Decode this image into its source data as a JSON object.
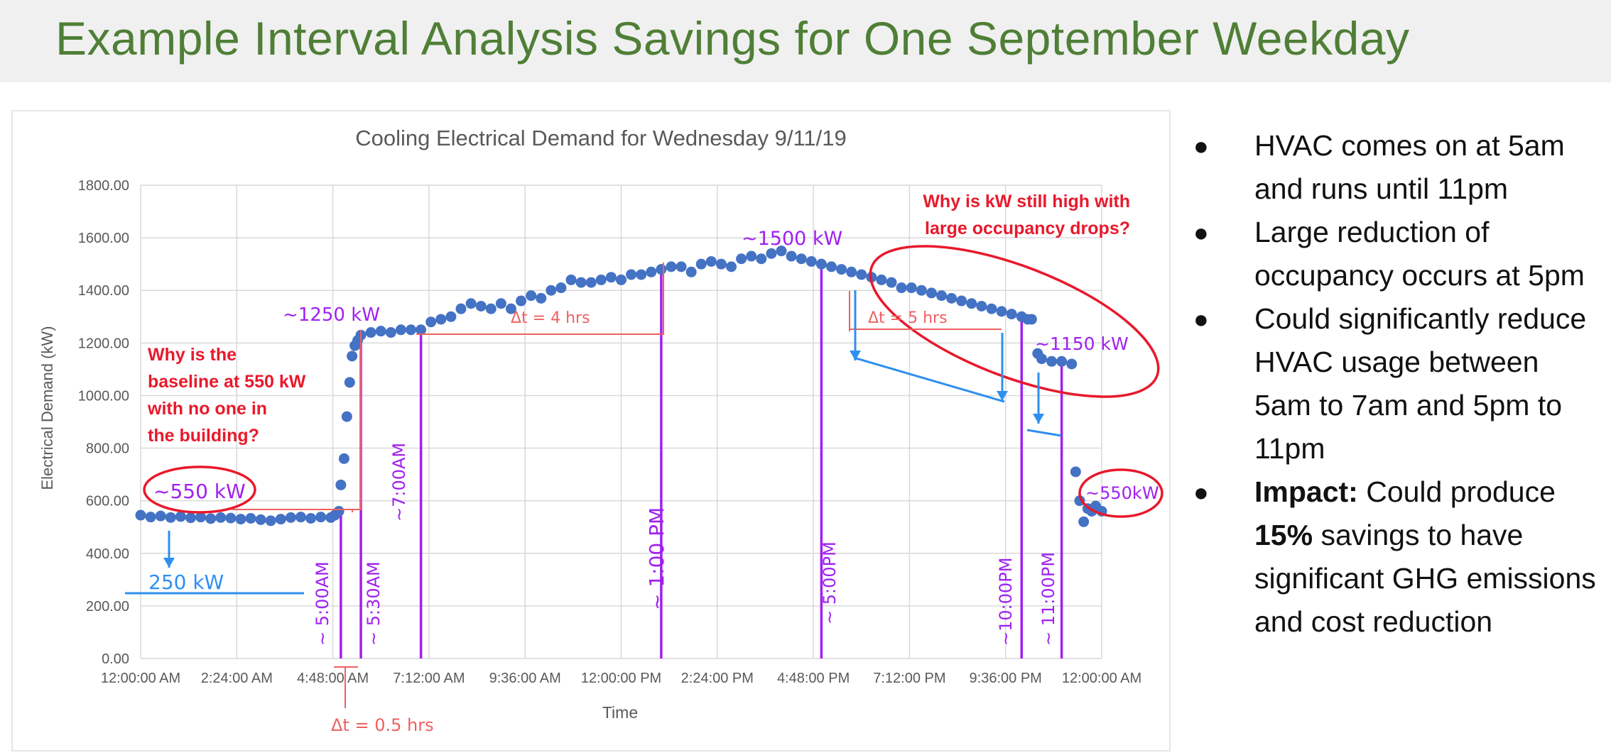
{
  "slide": {
    "title": "Example Interval Analysis Savings for One September Weekday"
  },
  "bullets": [
    {
      "text": "HVAC comes on at 5am and runs until 11pm"
    },
    {
      "text": "Large reduction of occupancy occurs at 5pm"
    },
    {
      "text": "Could significantly reduce HVAC usage between 5am to 7am and 5pm to 11pm"
    },
    {
      "bold_lead": "Impact:",
      "pre": " Could produce ",
      "bold_mid": "15%",
      "post": " savings to have significant GHG emissions and cost reduction"
    }
  ],
  "colors": {
    "title": "#4f7f36",
    "points": "#4472c4",
    "annotation_red": "#e8192c",
    "annotation_purple": "#a020f0",
    "annotation_blue": "#2e8ff0",
    "annotation_pink": "#f06060"
  },
  "chart_data": {
    "type": "scatter",
    "title": "Cooling Electrical Demand for Wednesday 9/11/19",
    "xlabel": "Time",
    "ylabel": "Electrical Demand (kW)",
    "xlim_hours": [
      0,
      24
    ],
    "ylim": [
      0,
      1800
    ],
    "grid": true,
    "legend": "none",
    "y_ticks": [
      "0.00",
      "200.00",
      "400.00",
      "600.00",
      "800.00",
      "1000.00",
      "1200.00",
      "1400.00",
      "1600.00",
      "1800.00"
    ],
    "x_ticks": [
      "12:00:00 AM",
      "2:24:00 AM",
      "4:48:00 AM",
      "7:12:00 AM",
      "9:36:00 AM",
      "12:00:00 PM",
      "2:24:00 PM",
      "4:48:00 PM",
      "7:12:00 PM",
      "9:36:00 PM",
      "12:00:00 AM"
    ],
    "series": [
      {
        "points": [
          [
            0.0,
            545
          ],
          [
            0.25,
            538
          ],
          [
            0.5,
            542
          ],
          [
            0.75,
            536
          ],
          [
            1.0,
            540
          ],
          [
            1.25,
            535
          ],
          [
            1.5,
            538
          ],
          [
            1.75,
            532
          ],
          [
            2.0,
            536
          ],
          [
            2.25,
            534
          ],
          [
            2.5,
            530
          ],
          [
            2.75,
            533
          ],
          [
            3.0,
            528
          ],
          [
            3.25,
            524
          ],
          [
            3.5,
            530
          ],
          [
            3.75,
            536
          ],
          [
            4.0,
            538
          ],
          [
            4.25,
            533
          ],
          [
            4.5,
            538
          ],
          [
            4.75,
            536
          ],
          [
            4.85,
            545
          ],
          [
            4.95,
            560
          ],
          [
            5.0,
            660
          ],
          [
            5.08,
            760
          ],
          [
            5.15,
            920
          ],
          [
            5.22,
            1050
          ],
          [
            5.28,
            1150
          ],
          [
            5.35,
            1190
          ],
          [
            5.42,
            1210
          ],
          [
            5.5,
            1230
          ],
          [
            5.75,
            1240
          ],
          [
            6.0,
            1245
          ],
          [
            6.25,
            1240
          ],
          [
            6.5,
            1250
          ],
          [
            6.75,
            1250
          ],
          [
            7.0,
            1250
          ],
          [
            7.25,
            1280
          ],
          [
            7.5,
            1290
          ],
          [
            7.75,
            1300
          ],
          [
            8.0,
            1330
          ],
          [
            8.25,
            1350
          ],
          [
            8.5,
            1340
          ],
          [
            8.75,
            1330
          ],
          [
            9.0,
            1350
          ],
          [
            9.25,
            1330
          ],
          [
            9.5,
            1360
          ],
          [
            9.75,
            1380
          ],
          [
            10.0,
            1370
          ],
          [
            10.25,
            1400
          ],
          [
            10.5,
            1410
          ],
          [
            10.75,
            1440
          ],
          [
            11.0,
            1430
          ],
          [
            11.25,
            1430
          ],
          [
            11.5,
            1440
          ],
          [
            11.75,
            1450
          ],
          [
            12.0,
            1440
          ],
          [
            12.25,
            1460
          ],
          [
            12.5,
            1460
          ],
          [
            12.75,
            1470
          ],
          [
            13.0,
            1480
          ],
          [
            13.25,
            1490
          ],
          [
            13.5,
            1490
          ],
          [
            13.75,
            1470
          ],
          [
            14.0,
            1500
          ],
          [
            14.25,
            1510
          ],
          [
            14.5,
            1500
          ],
          [
            14.75,
            1490
          ],
          [
            15.0,
            1520
          ],
          [
            15.25,
            1530
          ],
          [
            15.5,
            1520
          ],
          [
            15.75,
            1540
          ],
          [
            16.0,
            1550
          ],
          [
            16.25,
            1530
          ],
          [
            16.5,
            1520
          ],
          [
            16.75,
            1510
          ],
          [
            17.0,
            1500
          ],
          [
            17.25,
            1490
          ],
          [
            17.5,
            1480
          ],
          [
            17.75,
            1470
          ],
          [
            18.0,
            1460
          ],
          [
            18.25,
            1450
          ],
          [
            18.5,
            1440
          ],
          [
            18.75,
            1430
          ],
          [
            19.0,
            1410
          ],
          [
            19.25,
            1410
          ],
          [
            19.5,
            1400
          ],
          [
            19.75,
            1390
          ],
          [
            20.0,
            1380
          ],
          [
            20.25,
            1370
          ],
          [
            20.5,
            1360
          ],
          [
            20.75,
            1350
          ],
          [
            21.0,
            1340
          ],
          [
            21.25,
            1330
          ],
          [
            21.5,
            1320
          ],
          [
            21.75,
            1310
          ],
          [
            22.0,
            1300
          ],
          [
            22.15,
            1290
          ],
          [
            22.25,
            1290
          ],
          [
            22.4,
            1160
          ],
          [
            22.5,
            1140
          ],
          [
            22.75,
            1130
          ],
          [
            23.0,
            1130
          ],
          [
            23.25,
            1120
          ],
          [
            23.35,
            710
          ],
          [
            23.45,
            600
          ],
          [
            23.55,
            520
          ],
          [
            23.65,
            570
          ],
          [
            23.75,
            560
          ],
          [
            23.85,
            580
          ],
          [
            24.0,
            560
          ]
        ]
      }
    ],
    "annotations": {
      "baseline_question": "Why is the baseline at 550 kW with no one in the building?",
      "high_kw_question": "Why is kW still high with large occupancy drops?",
      "label_550_left": "~550 kW",
      "label_250": "250 kW",
      "label_1250": "~1250 kW",
      "label_1500": "~1500 kW",
      "label_1150": "~1150 kW",
      "label_550_right": "~550kW",
      "dt_4hrs": "Δt = 4 hrs",
      "dt_5hrs": "Δt = 5 hrs",
      "dt_05hrs": "Δt = 0.5 hrs",
      "time_500am": "~ 5:00AM",
      "time_530am": "~ 5:30AM",
      "time_700am": "~7:00AM",
      "time_100pm": "~ 1:00 PM",
      "time_500pm": "~ 5:00PM",
      "time_1000pm": "~10:00PM",
      "time_1100pm": "~ 11:00PM"
    }
  }
}
